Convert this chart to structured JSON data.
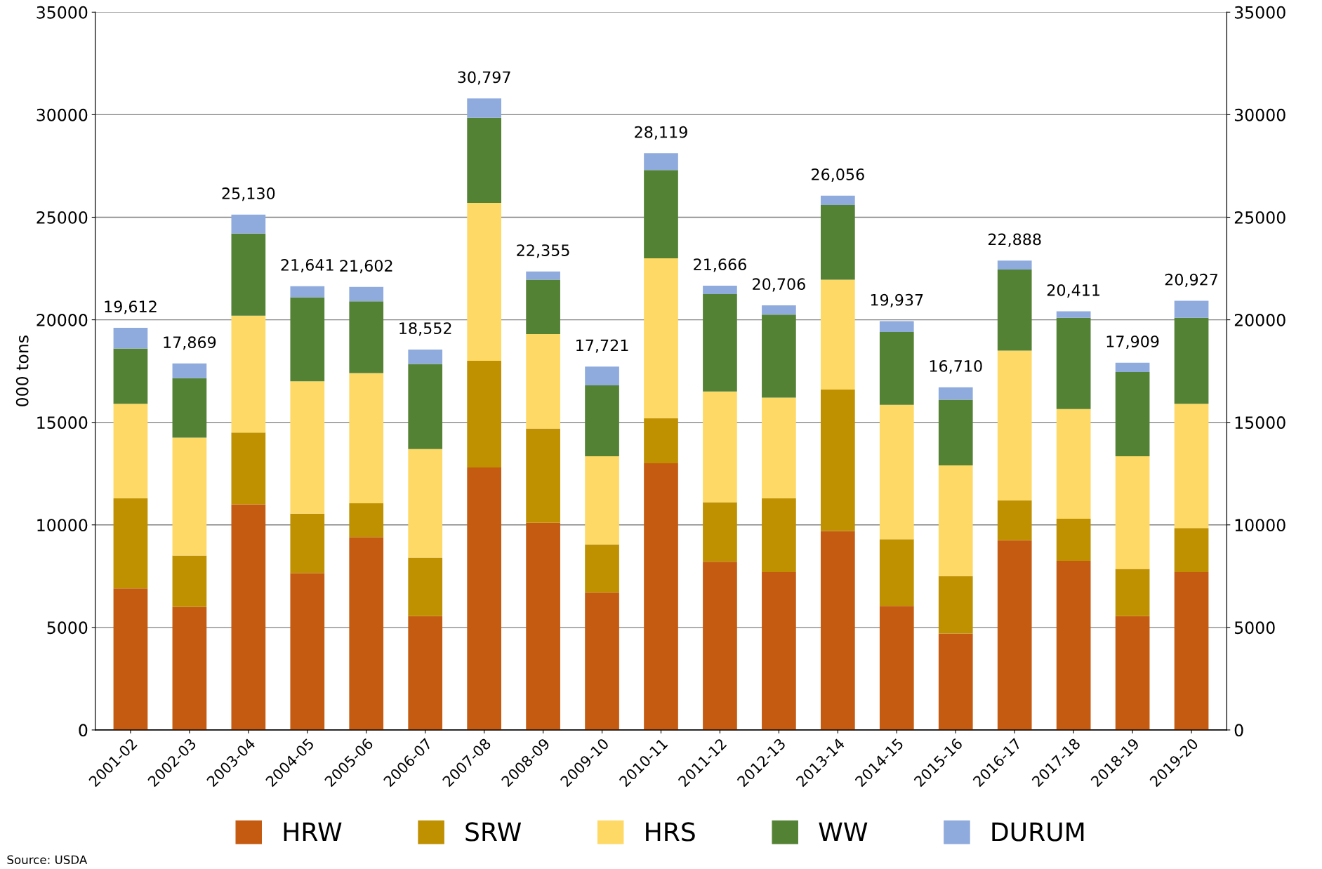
{
  "chart_data": {
    "type": "bar",
    "stacked": true,
    "ylabel": "000 tons",
    "categories": [
      "2001-02",
      "2002-03",
      "2003-04",
      "2004-05",
      "2005-06",
      "2006-07",
      "2007-08",
      "2008-09",
      "2009-10",
      "2010-11",
      "2011-12",
      "2012-13",
      "2013-14",
      "2014-15",
      "2015-16",
      "2016-17",
      "2017-18",
      "2018-19",
      "2019-20"
    ],
    "series": [
      {
        "name": "HRW",
        "color": "#c55a11",
        "values": [
          6900,
          6000,
          11000,
          7650,
          9400,
          5550,
          12800,
          10100,
          6700,
          13000,
          8200,
          7700,
          9700,
          6050,
          4700,
          9250,
          8250,
          5550,
          7700
        ]
      },
      {
        "name": "SRW",
        "color": "#bf9000",
        "values": [
          4400,
          2500,
          3500,
          2900,
          1650,
          2850,
          5200,
          4600,
          2350,
          2200,
          2900,
          3600,
          6900,
          3250,
          2800,
          1950,
          2050,
          2300,
          2150
        ]
      },
      {
        "name": "HRS",
        "color": "#ffd966",
        "values": [
          4600,
          5750,
          5700,
          6450,
          6350,
          5300,
          7700,
          4600,
          4300,
          7800,
          5400,
          4900,
          5350,
          6550,
          5400,
          7300,
          5350,
          5500,
          6050
        ]
      },
      {
        "name": "WW",
        "color": "#548235",
        "values": [
          2700,
          2900,
          4000,
          4100,
          3500,
          4150,
          4150,
          2650,
          3450,
          4300,
          4750,
          4050,
          3650,
          3550,
          3200,
          3950,
          4450,
          4100,
          4200
        ]
      },
      {
        "name": "DURUM",
        "color": "#8faadc",
        "values": [
          1012,
          719,
          930,
          541,
          702,
          702,
          947,
          405,
          921,
          819,
          416,
          456,
          456,
          537,
          610,
          438,
          311,
          459,
          827
        ]
      }
    ],
    "totals": [
      "19,612",
      "17,869",
      "25,130",
      "21,641",
      "21,602",
      "18,552",
      "30,797",
      "22,355",
      "17,721",
      "28,119",
      "21,666",
      "20,706",
      "26,056",
      "19,937",
      "16,710",
      "22,888",
      "20,411",
      "17,909",
      "20,927"
    ],
    "ylim": [
      0,
      35000
    ],
    "yticks": [
      0,
      5000,
      10000,
      15000,
      20000,
      25000,
      30000,
      35000
    ],
    "y2lim": [
      0,
      35000
    ],
    "y2ticks": [
      0,
      5000,
      10000,
      15000,
      20000,
      25000,
      30000,
      35000
    ],
    "grid": "y",
    "legend": "bottom",
    "annotations": [
      "Source: USDA"
    ]
  }
}
